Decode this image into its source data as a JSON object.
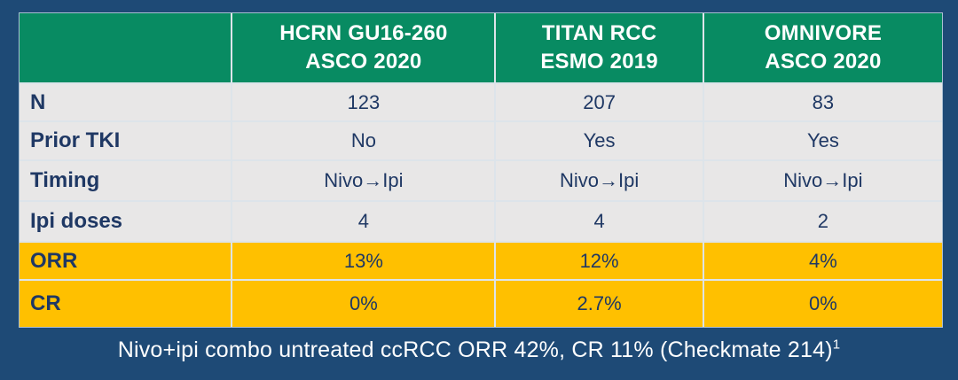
{
  "colors": {
    "background_navy": "#1E4A76",
    "header_green": "#088B62",
    "row_gray": "#E8E7E7",
    "highlight_yellow": "#FFC000",
    "text_navy": "#1F3864",
    "header_text": "#FFFFFF",
    "footer_text": "#FFFFFF"
  },
  "table": {
    "columns": [
      {
        "line1": "HCRN GU16-260",
        "line2": "ASCO 2020"
      },
      {
        "line1": "TITAN RCC",
        "line2": "ESMO 2019"
      },
      {
        "line1": "OMNIVORE",
        "line2": "ASCO 2020"
      }
    ],
    "rows": [
      {
        "label": "N",
        "values": [
          "123",
          "207",
          "83"
        ]
      },
      {
        "label": "Prior TKI",
        "values": [
          "No",
          "Yes",
          "Yes"
        ]
      },
      {
        "label": "Timing",
        "values": [
          "Nivo→Ipi",
          "Nivo→Ipi",
          "Nivo→Ipi"
        ]
      },
      {
        "label": "Ipi doses",
        "values": [
          "4",
          "4",
          "2"
        ]
      },
      {
        "label": "ORR",
        "values": [
          "13%",
          "12%",
          "4%"
        ]
      },
      {
        "label": "CR",
        "values": [
          "0%",
          "2.7%",
          "0%"
        ]
      }
    ]
  },
  "footer": {
    "text": "Nivo+ipi combo untreated ccRCC ORR 42%, CR 11% (Checkmate 214)",
    "superscript": "1"
  },
  "chart_data": {
    "type": "table",
    "columns": [
      "",
      "HCRN GU16-260 ASCO 2020",
      "TITAN RCC ESMO 2019",
      "OMNIVORE ASCO 2020"
    ],
    "rows": [
      [
        "N",
        "123",
        "207",
        "83"
      ],
      [
        "Prior TKI",
        "No",
        "Yes",
        "Yes"
      ],
      [
        "Timing",
        "Nivo→Ipi",
        "Nivo→Ipi",
        "Nivo→Ipi"
      ],
      [
        "Ipi doses",
        "4",
        "4",
        "2"
      ],
      [
        "ORR",
        "13%",
        "12%",
        "4%"
      ],
      [
        "CR",
        "0%",
        "2.7%",
        "0%"
      ]
    ],
    "highlighted_rows": [
      "ORR",
      "CR"
    ],
    "footnote": "Nivo+ipi combo untreated ccRCC ORR 42%, CR 11% (Checkmate 214)1",
    "legend_position": "none",
    "grid": true
  }
}
